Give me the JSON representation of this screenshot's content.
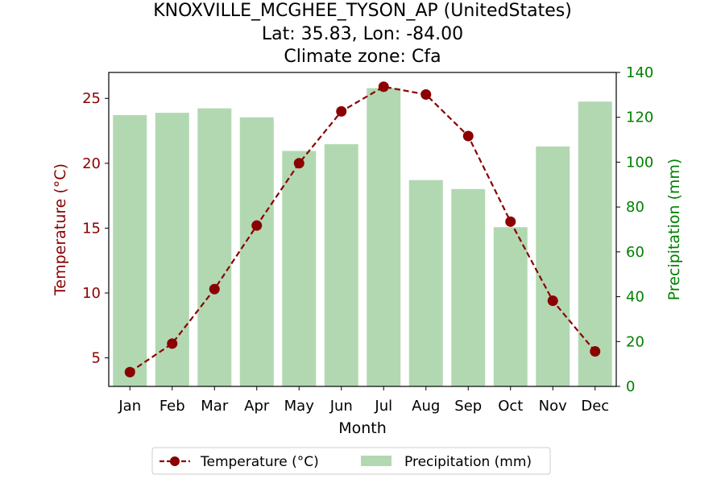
{
  "chart_data": {
    "type": "bar+line",
    "title": [
      "KNOXVILLE_MCGHEE_TYSON_AP (UnitedStates)",
      "Lat: 35.83, Lon: -84.00",
      "Climate zone: Cfa"
    ],
    "xlabel": "Month",
    "categories": [
      "Jan",
      "Feb",
      "Mar",
      "Apr",
      "May",
      "Jun",
      "Jul",
      "Aug",
      "Sep",
      "Oct",
      "Nov",
      "Dec"
    ],
    "left_axis": {
      "label": "Temperature (°C)",
      "ylim": [
        2.8,
        27.0
      ],
      "ticks": [
        5,
        10,
        15,
        20,
        25
      ],
      "color": "#8b0000"
    },
    "right_axis": {
      "label": "Precipitation (mm)",
      "ylim": [
        0,
        140
      ],
      "ticks": [
        0,
        20,
        40,
        60,
        80,
        100,
        120,
        140
      ],
      "color": "#008000"
    },
    "series": [
      {
        "name": "Temperature (°C)",
        "kind": "line",
        "axis": "left",
        "color": "#8b0000",
        "style": "dashed",
        "marker": "circle",
        "values": [
          3.9,
          6.1,
          10.3,
          15.2,
          20.0,
          24.0,
          25.9,
          25.3,
          22.1,
          15.5,
          9.4,
          5.5
        ]
      },
      {
        "name": "Precipitation (mm)",
        "kind": "bar",
        "axis": "right",
        "color": "#b2d8b2",
        "values": [
          121,
          122,
          124,
          120,
          105,
          108,
          133,
          92,
          88,
          71,
          107,
          127
        ]
      }
    ],
    "legend": {
      "placement": "bottom-center",
      "entries": [
        "Temperature (°C)",
        "Precipitation (mm)"
      ]
    },
    "grid": false
  }
}
